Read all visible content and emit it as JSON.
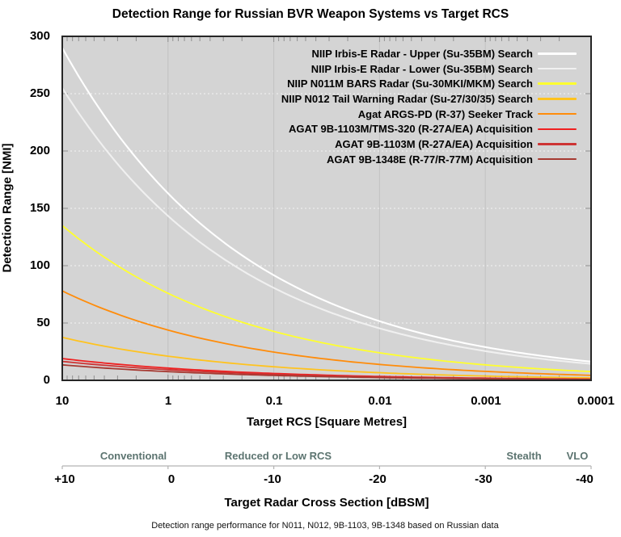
{
  "title": "Detection Range for Russian BVR Weapon Systems vs Target RCS",
  "axes": {
    "y": {
      "title": "Detection Range [NMI]",
      "ticks": [
        "300",
        "250",
        "200",
        "150",
        "100",
        "50",
        "0"
      ],
      "range": [
        0,
        300
      ]
    },
    "x": {
      "title": "Target RCS [Square Metres]",
      "ticks": [
        "10",
        "1",
        "0.1",
        "0.01",
        "0.001",
        "0.0001"
      ],
      "scale": "log-reversed"
    },
    "dbsm": {
      "title": "Target Radar Cross Section [dBSM]",
      "ticks": [
        "+10",
        "0",
        "-10",
        "-20",
        "-30",
        "-40"
      ],
      "zones": [
        "Conventional",
        "Reduced or Low RCS",
        "Stealth",
        "VLO"
      ]
    }
  },
  "footnote": "Detection range performance for N011, N012, 9B-1103, 9B-1348 based on Russian data",
  "colors": {
    "plot_background": "#d4d4d4",
    "axis_border": "#262626",
    "grid_horizontal_dotted": "#f3f3f3",
    "grid_vertical_decades": "#c2c2c2",
    "minor_tick": "#8f8f8f",
    "dbsm_axis_line": "#b3b3b3",
    "zone_label": "#5c7470"
  },
  "chart_data": {
    "type": "line",
    "title": "Detection Range for Russian BVR Weapon Systems vs Target RCS",
    "xlabel": "Target RCS [Square Metres]",
    "ylabel": "Detection Range [NMI]",
    "x_scale": "log-reversed",
    "xlim": [
      10,
      0.0001
    ],
    "ylim": [
      0,
      300
    ],
    "grid": "horizontal white dotted every 50 NMI; vertical gray lines at each decade",
    "legend_position": "top-right inside plot",
    "range_law": "R = R0_at_10sqm * (RCS/10)^0.25",
    "x_values_sqm": [
      10,
      1,
      0.1,
      0.01,
      0.001,
      0.0001
    ],
    "series": [
      {
        "name": "NIIP Irbis-E Radar - Upper (Su-35BM) Search",
        "color": "#ffffff",
        "r0_nmi_at_10sqm": 290,
        "values": [
          290,
          163.1,
          91.7,
          51.6,
          29.0,
          16.3
        ]
      },
      {
        "name": "NIIP Irbis-E Radar - Lower (Su-35BM) Search",
        "color": "#f0f0f0",
        "r0_nmi_at_10sqm": 255,
        "values": [
          255,
          143.4,
          80.6,
          45.3,
          25.5,
          14.3
        ]
      },
      {
        "name": "NIIP N011M BARS Radar (Su-30MKI/MKM) Search",
        "color": "#ffff2e",
        "r0_nmi_at_10sqm": 135,
        "values": [
          135,
          75.9,
          42.7,
          24.0,
          13.5,
          7.6
        ]
      },
      {
        "name": "NIIP N012 Tail Warning Radar (Su-27/30/35) Search",
        "color": "#ffc31f",
        "r0_nmi_at_10sqm": 37.5,
        "values": [
          37.5,
          21.1,
          11.9,
          6.7,
          3.8,
          2.1
        ]
      },
      {
        "name": "Agat ARGS-PD (R-37) Seeker Track",
        "color": "#ff8c0a",
        "r0_nmi_at_10sqm": 78,
        "values": [
          78,
          43.9,
          24.7,
          13.9,
          7.8,
          4.4
        ]
      },
      {
        "name": "AGAT 9B-1103M/TMS-320 (R-27A/EA) Acquisition",
        "color": "#ef2020",
        "r0_nmi_at_10sqm": 19,
        "values": [
          19,
          10.7,
          6.0,
          3.4,
          1.9,
          1.1
        ]
      },
      {
        "name": "AGAT 9B-1103M (R-27A/EA) Acquisition",
        "color": "#cd3333",
        "r0_nmi_at_10sqm": 16.5,
        "values": [
          16.5,
          9.3,
          5.2,
          2.9,
          1.7,
          0.9
        ]
      },
      {
        "name": "AGAT 9B-1348E (R-77/R-77M) Acquisition",
        "color": "#a63a32",
        "r0_nmi_at_10sqm": 13.5,
        "values": [
          13.5,
          7.6,
          4.3,
          2.4,
          1.4,
          0.8
        ]
      }
    ]
  }
}
